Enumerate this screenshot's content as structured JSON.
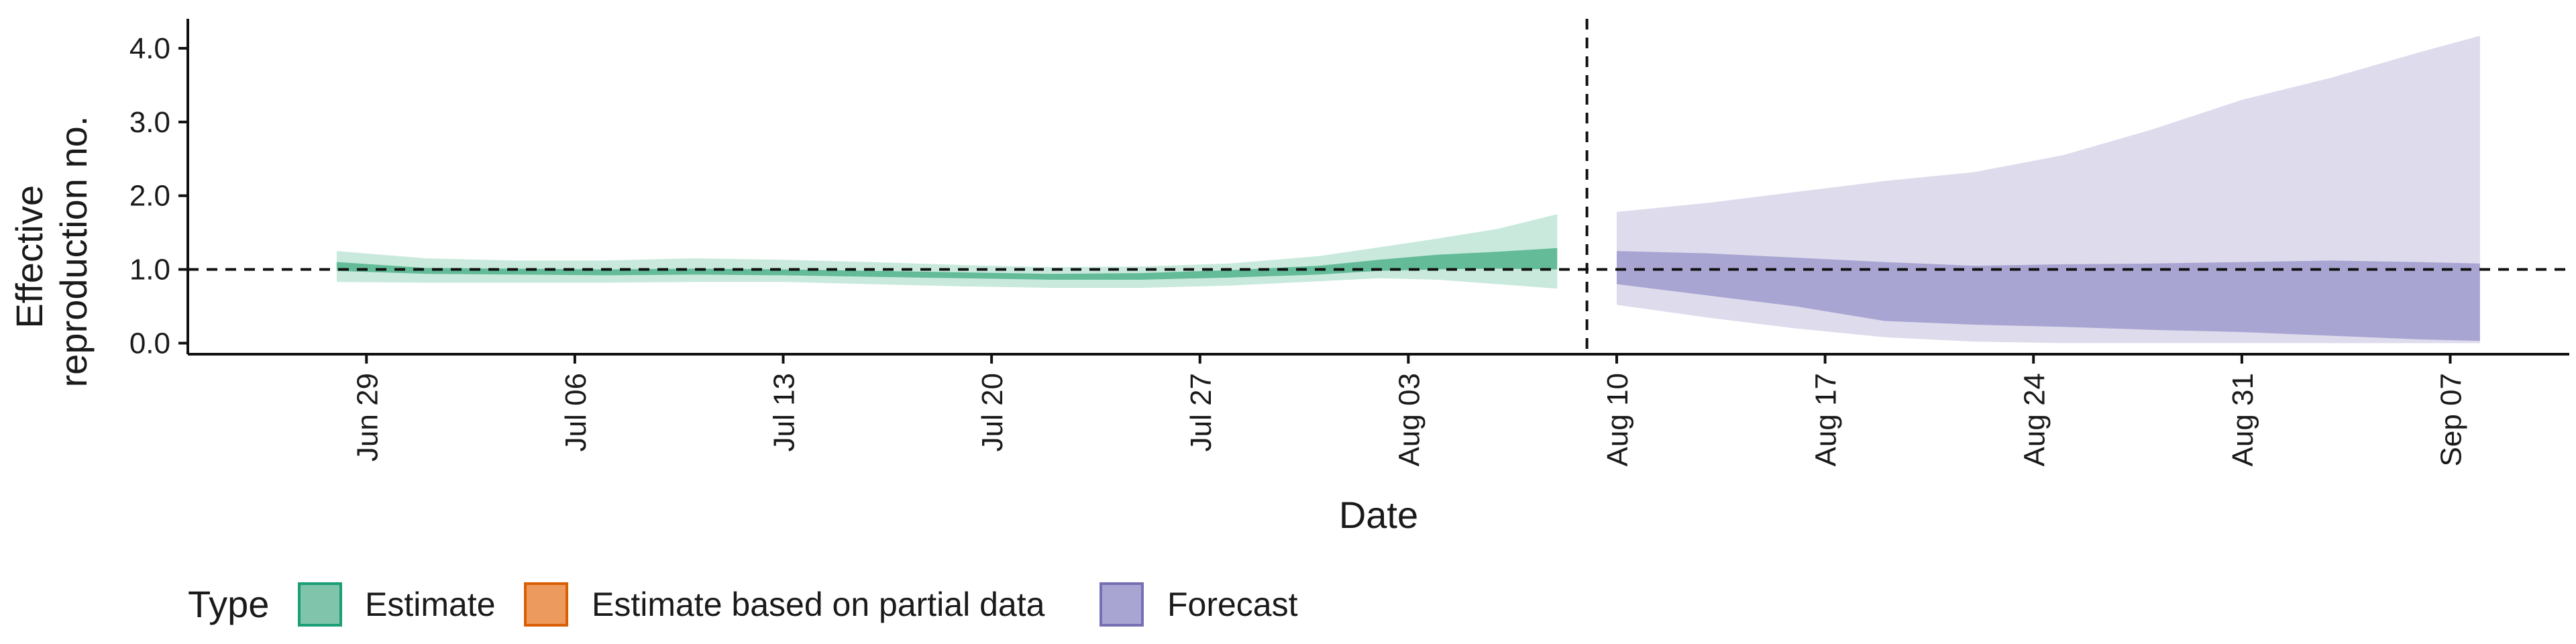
{
  "chart_data": {
    "type": "area",
    "title": "",
    "xlabel": "Date",
    "ylabel": [
      "Effective",
      "reproduction no."
    ],
    "ylim": [
      -0.15,
      4.4
    ],
    "yticks": [
      0.0,
      1.0,
      2.0,
      3.0,
      4.0
    ],
    "ytick_labels": [
      "0.0",
      "1.0",
      "2.0",
      "3.0",
      "4.0"
    ],
    "xlim": [
      "2020-06-23",
      "2020-09-11"
    ],
    "xticks": [
      "2020-06-29",
      "2020-07-06",
      "2020-07-13",
      "2020-07-20",
      "2020-07-27",
      "2020-08-03",
      "2020-08-10",
      "2020-08-17",
      "2020-08-24",
      "2020-08-31",
      "2020-09-07"
    ],
    "xtick_labels": [
      "Jun 29",
      "Jul 06",
      "Jul 13",
      "Jul 20",
      "Jul 27",
      "Aug 03",
      "Aug 10",
      "Aug 17",
      "Aug 24",
      "Aug 31",
      "Sep 07"
    ],
    "reference_hline": 1.0,
    "reference_vline": "2020-08-09",
    "grid": false,
    "legend": {
      "title": "Type",
      "position": "bottom-left",
      "entries": [
        {
          "label": "Estimate",
          "fill": "#7fc4ab",
          "stroke": "#1b9e77"
        },
        {
          "label": "Estimate based on partial data",
          "fill": "#ec9a5e",
          "stroke": "#d95f02"
        },
        {
          "label": "Forecast",
          "fill": "#a9a5d3",
          "stroke": "#7570b3"
        }
      ]
    },
    "series": [
      {
        "type": "Estimate",
        "color_outer": "#c9e9dd",
        "color_inner": "#63bb98",
        "dates": [
          "2020-06-28",
          "2020-07-01",
          "2020-07-04",
          "2020-07-07",
          "2020-07-10",
          "2020-07-13",
          "2020-07-16",
          "2020-07-19",
          "2020-07-22",
          "2020-07-25",
          "2020-07-28",
          "2020-07-31",
          "2020-08-02",
          "2020-08-04",
          "2020-08-06",
          "2020-08-08"
        ],
        "upper_90": [
          1.25,
          1.15,
          1.12,
          1.12,
          1.15,
          1.13,
          1.1,
          1.06,
          1.03,
          1.04,
          1.08,
          1.18,
          1.3,
          1.42,
          1.55,
          1.75
        ],
        "upper_50": [
          1.1,
          1.02,
          1.01,
          1.0,
          1.01,
          1.0,
          0.98,
          0.96,
          0.94,
          0.95,
          0.99,
          1.05,
          1.13,
          1.2,
          1.24,
          1.29
        ],
        "lower_50": [
          0.98,
          0.94,
          0.93,
          0.92,
          0.93,
          0.92,
          0.9,
          0.88,
          0.86,
          0.86,
          0.89,
          0.93,
          0.98,
          1.0,
          1.01,
          1.0
        ],
        "lower_90": [
          0.83,
          0.82,
          0.82,
          0.82,
          0.83,
          0.83,
          0.8,
          0.77,
          0.75,
          0.75,
          0.78,
          0.84,
          0.88,
          0.86,
          0.8,
          0.74
        ]
      },
      {
        "type": "Forecast",
        "color_outer": "#dedcec",
        "color_inner": "#a9a5d3",
        "dates": [
          "2020-08-10",
          "2020-08-13",
          "2020-08-16",
          "2020-08-19",
          "2020-08-22",
          "2020-08-25",
          "2020-08-28",
          "2020-08-31",
          "2020-09-03",
          "2020-09-06",
          "2020-09-08"
        ],
        "upper_90": [
          1.78,
          1.9,
          2.05,
          2.2,
          2.32,
          2.55,
          2.9,
          3.3,
          3.6,
          3.95,
          4.17
        ],
        "upper_50": [
          1.25,
          1.22,
          1.16,
          1.1,
          1.05,
          1.07,
          1.08,
          1.1,
          1.12,
          1.1,
          1.08
        ],
        "lower_50": [
          0.8,
          0.65,
          0.5,
          0.3,
          0.25,
          0.22,
          0.18,
          0.15,
          0.1,
          0.05,
          0.03
        ],
        "lower_90": [
          0.52,
          0.35,
          0.2,
          0.08,
          0.02,
          0.0,
          0.0,
          0.0,
          0.0,
          0.0,
          0.0
        ]
      }
    ]
  }
}
